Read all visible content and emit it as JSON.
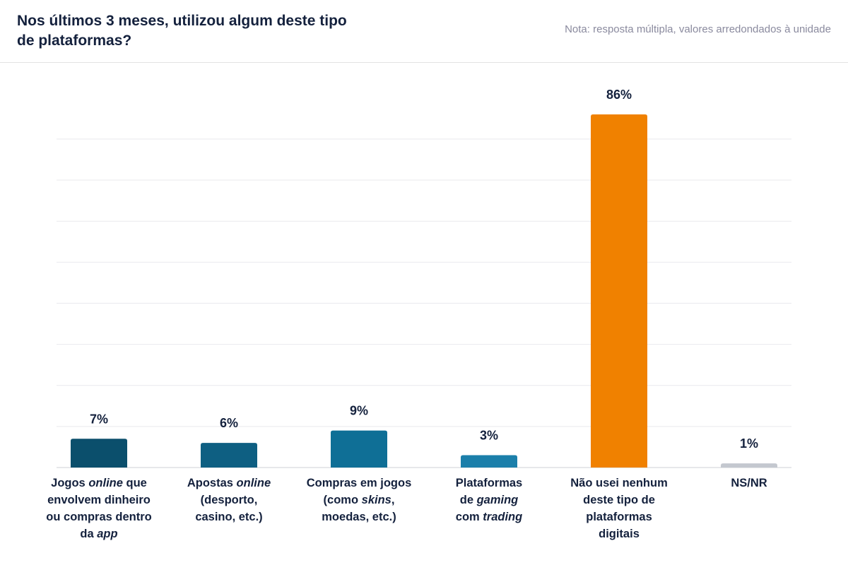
{
  "header": {
    "title": "Nos últimos 3 meses, utilizou algum deste tipo de plataformas?",
    "note": "Nota: resposta múltipla, valores arredondados à unidade"
  },
  "chart_data": {
    "type": "bar",
    "title": "Nos últimos 3 meses, utilizou algum deste tipo de plataformas?",
    "xlabel": "",
    "ylabel": "",
    "ylim": [
      0,
      90
    ],
    "grid": true,
    "value_suffix": "%",
    "categories": [
      "Jogos online que envolvem dinheiro ou compras dentro da app",
      "Apostas online (desporto, casino, etc.)",
      "Compras em jogos (como skins, moedas, etc.)",
      "Plataformas de gaming com trading",
      "Não usei nenhum deste tipo de plataformas digitais",
      "NS/NR"
    ],
    "category_label_lines": [
      [
        [
          "Jogos ",
          [
            "online"
          ],
          " que"
        ],
        [
          "envolvem dinheiro"
        ],
        [
          "ou compras dentro"
        ],
        [
          "da ",
          [
            "app"
          ]
        ]
      ],
      [
        [
          "Apostas ",
          [
            "online"
          ]
        ],
        [
          "(desporto,"
        ],
        [
          "casino, etc.)"
        ]
      ],
      [
        [
          "Compras em jogos"
        ],
        [
          "(como ",
          [
            "skins"
          ],
          ","
        ],
        [
          "moedas, etc.)"
        ]
      ],
      [
        [
          "Plataformas"
        ],
        [
          "de ",
          [
            "gaming"
          ]
        ],
        [
          "com ",
          [
            "trading"
          ]
        ]
      ],
      [
        [
          "Não usei nenhum"
        ],
        [
          "deste tipo de"
        ],
        [
          "plataformas"
        ],
        [
          "digitais"
        ]
      ],
      [
        [
          "NS/NR"
        ]
      ]
    ],
    "values": [
      7,
      6,
      9,
      3,
      86,
      1
    ],
    "colors": [
      "#0b4f6c",
      "#0e5f82",
      "#0f6f96",
      "#1b7faa",
      "#f08100",
      "#c4c8cf"
    ]
  }
}
